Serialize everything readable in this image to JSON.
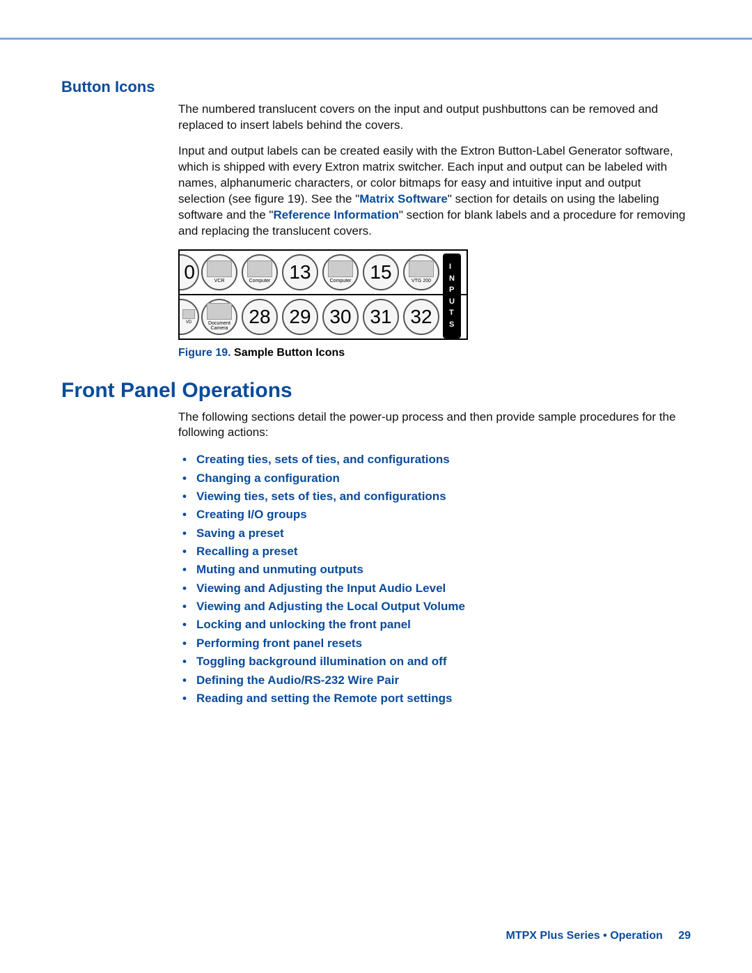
{
  "colors": {
    "rule": "#7fa9d9",
    "heading": "#0a4b9a",
    "link": "#0a4b9a",
    "body": "#111111",
    "bg": "#ffffff"
  },
  "section1": {
    "heading": "Button Icons",
    "para1": "The numbered translucent covers on the input and output pushbuttons can be removed and replaced to insert labels behind the covers.",
    "para2_a": "Input and output labels can be created easily with the Extron Button-Label Generator software, which is shipped with every Extron matrix switcher. Each input and output can be labeled with names, alphanumeric characters, or color bitmaps for easy and intuitive input and output selection (see figure 19). See the \"",
    "para2_link1": "Matrix Software",
    "para2_b": "\" section for details on using the labeling software and the \"",
    "para2_link2": "Reference Information",
    "para2_c": "\" section for blank labels and a procedure for removing and replacing the translucent covers."
  },
  "figure": {
    "row1": {
      "half": "0",
      "cells": [
        {
          "type": "label",
          "label": "VCR"
        },
        {
          "type": "label",
          "label": "Computer"
        },
        {
          "type": "number",
          "value": "13"
        },
        {
          "type": "label",
          "label": "Computer"
        },
        {
          "type": "number",
          "value": "15"
        },
        {
          "type": "label",
          "label": "VTG 200"
        }
      ]
    },
    "row2": {
      "half_label": "VD",
      "cells": [
        {
          "type": "label",
          "label": "Document\nCamera"
        },
        {
          "type": "number",
          "value": "28"
        },
        {
          "type": "number",
          "value": "29"
        },
        {
          "type": "number",
          "value": "30"
        },
        {
          "type": "number",
          "value": "31"
        },
        {
          "type": "number",
          "value": "32"
        }
      ]
    },
    "side_label": "I\nN\nP\nU\nT\nS",
    "caption_label": "Figure 19.",
    "caption_text": " Sample Button Icons"
  },
  "section2": {
    "heading": "Front Panel Operations",
    "intro": "The following sections detail the power-up process and then provide sample procedures for the following actions:",
    "actions": [
      "Creating ties, sets of ties, and configurations",
      "Changing a configuration",
      "Viewing ties, sets of ties, and configurations",
      "Creating I/O groups",
      "Saving a preset",
      "Recalling a preset",
      "Muting and unmuting outputs",
      "Viewing and Adjusting the Input Audio Level",
      "Viewing and Adjusting the Local Output Volume",
      "Locking and unlocking the front panel",
      "Performing front panel resets",
      "Toggling background illumination on and off",
      "Defining the Audio/RS-232 Wire Pair",
      "Reading and setting the Remote port settings"
    ]
  },
  "footer": {
    "title": "MTPX Plus Series • Operation",
    "page": "29"
  }
}
